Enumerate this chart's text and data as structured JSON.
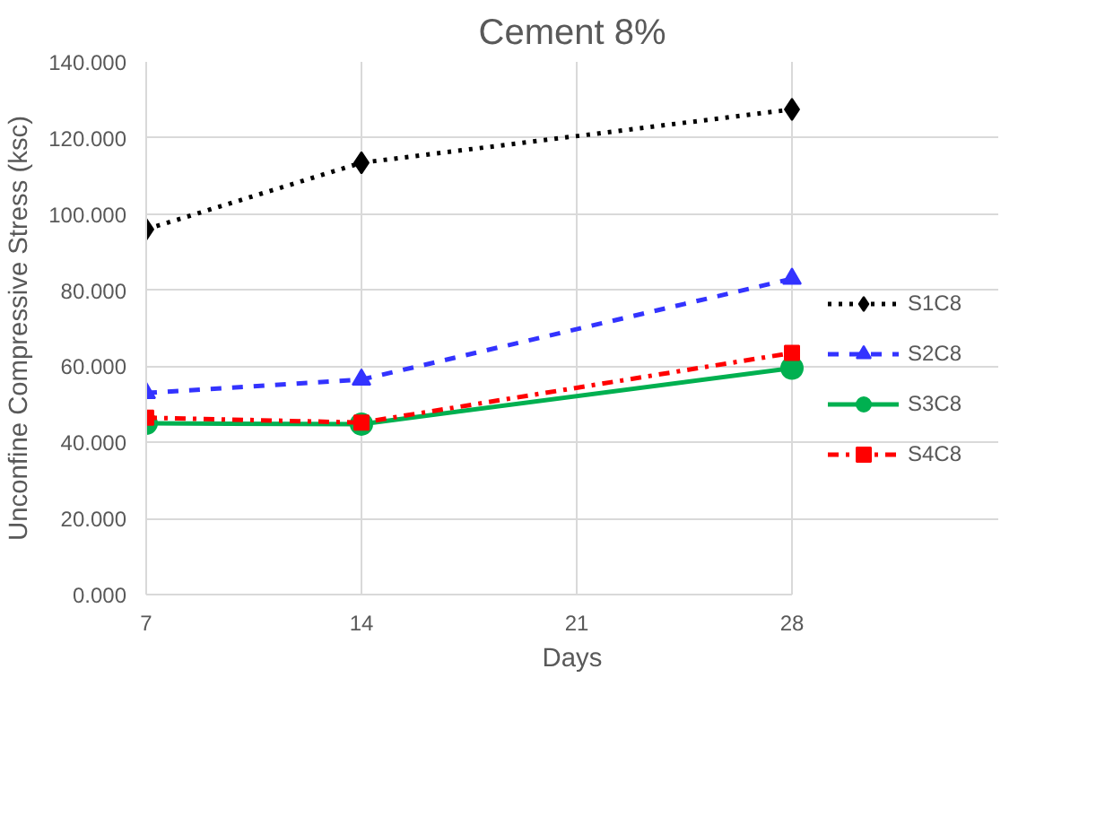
{
  "chart_data": {
    "type": "line",
    "title": "Cement 8%",
    "xlabel": "Days",
    "ylabel": "Unconfine Compressive Stress (ksc)",
    "x": [
      7,
      14,
      28
    ],
    "xlim": [
      7,
      28
    ],
    "xticks": [
      7,
      14,
      21,
      28
    ],
    "ylim": [
      0,
      140
    ],
    "yticks": [
      {
        "value": 0,
        "label": "0.000"
      },
      {
        "value": 20,
        "label": "20.000"
      },
      {
        "value": 40,
        "label": "40.000"
      },
      {
        "value": 60,
        "label": "60.000"
      },
      {
        "value": 80,
        "label": "80.000"
      },
      {
        "value": 100,
        "label": "100.000"
      },
      {
        "value": 120,
        "label": "120.000"
      },
      {
        "value": 140,
        "label": "140.000"
      }
    ],
    "grid": true,
    "legend": "right",
    "series": [
      {
        "name": "S1C8",
        "color": "#000000",
        "values": [
          96,
          113.5,
          127.5
        ],
        "marker": "diamond",
        "line_style": "dotted"
      },
      {
        "name": "S2C8",
        "color": "#3333ff",
        "values": [
          53,
          56.5,
          83
        ],
        "marker": "triangle",
        "line_style": "dashed"
      },
      {
        "name": "S3C8",
        "color": "#00b050",
        "values": [
          45,
          44.8,
          59.5
        ],
        "marker": "circle",
        "line_style": "solid"
      },
      {
        "name": "S4C8",
        "color": "#ff0000",
        "values": [
          46.5,
          45.2,
          63.5
        ],
        "marker": "square",
        "line_style": "dashdot"
      }
    ]
  }
}
